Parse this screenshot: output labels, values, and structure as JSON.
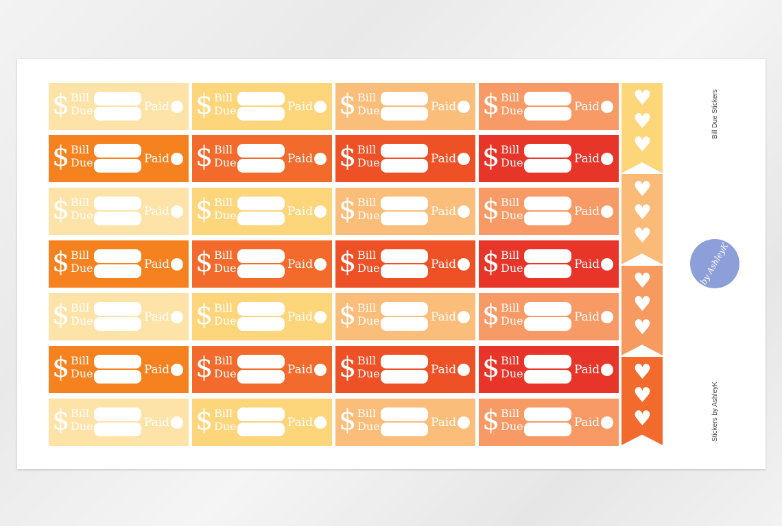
{
  "sheet": {
    "title": "Bill Due Stickers",
    "credit": "Stickers by AshleyK",
    "logo_text": "by AshleyK"
  },
  "sticker_labels": {
    "icon": "$",
    "bill": "Bill",
    "due": "Due",
    "paid": "Paid"
  },
  "rows": [
    {
      "colors": [
        "#fde3a7",
        "#fdd57a",
        "#fbbd7a",
        "#f79a65"
      ]
    },
    {
      "colors": [
        "#f5821f",
        "#f26a2c",
        "#ef5127",
        "#e8352a"
      ]
    },
    {
      "colors": [
        "#fde3a7",
        "#fdd57a",
        "#fbbd7a",
        "#f79a65"
      ]
    },
    {
      "colors": [
        "#f5821f",
        "#f26a2c",
        "#ef5127",
        "#e8352a"
      ]
    },
    {
      "colors": [
        "#fde3a7",
        "#fdd57a",
        "#fbbd7a",
        "#f79a65"
      ]
    },
    {
      "colors": [
        "#f5821f",
        "#f26a2c",
        "#ef5127",
        "#e8352a"
      ]
    },
    {
      "colors": [
        "#fde3a7",
        "#fdd57a",
        "#fbbd7a",
        "#f79a65"
      ]
    }
  ],
  "flags": [
    {
      "color": "#fdd67a",
      "icon": "heart-icon",
      "count": 3
    },
    {
      "color": "#fbbb78",
      "icon": "heart-icon",
      "count": 3
    },
    {
      "color": "#f79a60",
      "icon": "heart-icon",
      "count": 3
    },
    {
      "color": "#f26a2c",
      "icon": "heart-icon",
      "count": 3
    }
  ]
}
